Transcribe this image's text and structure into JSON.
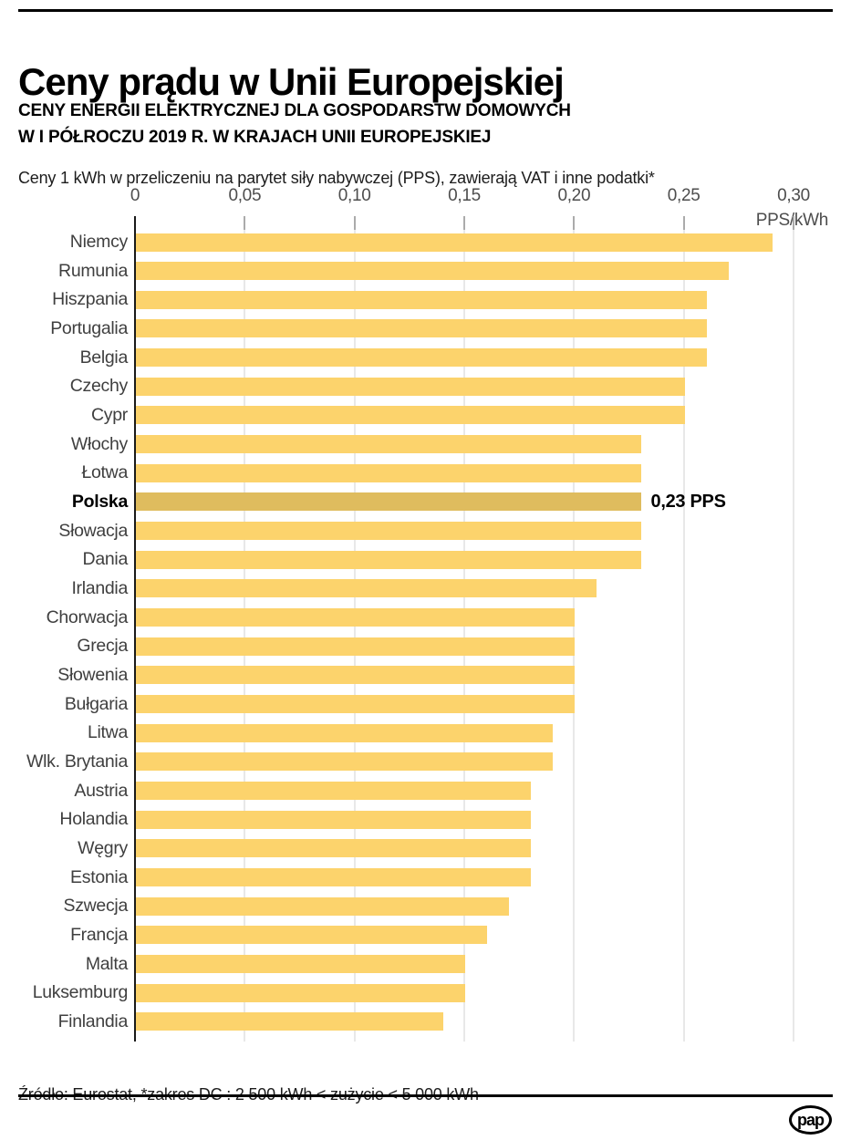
{
  "header": {
    "title": "Ceny prądu w Unii Europejskiej",
    "subtitle_line1": "CENY ENERGII ELEKTRYCZNEJ DLA GOSPODARSTW DOMOWYCH",
    "subtitle_line2": "W I PÓŁROCZU 2019 R. W KRAJACH UNII EUROPEJSKIEJ",
    "description": "Ceny 1 kWh w przeliczeniu na parytet siły nabywczej (PPS), zawierają VAT i inne podatki*"
  },
  "chart_data": {
    "type": "bar",
    "orientation": "horizontal",
    "title": "Ceny energii elektrycznej dla gospodarstw domowych w I półroczu 2019 r. w krajach Unii Europejskiej",
    "unit_label": "PPS/kWh",
    "xlim": [
      0,
      0.3
    ],
    "grid": true,
    "x_ticks": {
      "values": [
        0,
        0.05,
        0.1,
        0.15,
        0.2,
        0.25,
        0.3
      ],
      "labels": [
        "0",
        "0,05",
        "0,10",
        "0,15",
        "0,20",
        "0,25",
        "0,30"
      ]
    },
    "categories": [
      "Niemcy",
      "Rumunia",
      "Hiszpania",
      "Portugalia",
      "Belgia",
      "Czechy",
      "Cypr",
      "Włochy",
      "Łotwa",
      "Polska",
      "Słowacja",
      "Dania",
      "Irlandia",
      "Chorwacja",
      "Grecja",
      "Słowenia",
      "Bułgaria",
      "Litwa",
      "Wlk. Brytania",
      "Austria",
      "Holandia",
      "Węgry",
      "Estonia",
      "Szwecja",
      "Francja",
      "Malta",
      "Luksemburg",
      "Finlandia"
    ],
    "values": [
      0.29,
      0.27,
      0.26,
      0.26,
      0.26,
      0.25,
      0.25,
      0.23,
      0.23,
      0.23,
      0.23,
      0.23,
      0.21,
      0.2,
      0.2,
      0.2,
      0.2,
      0.19,
      0.19,
      0.18,
      0.18,
      0.18,
      0.18,
      0.17,
      0.16,
      0.15,
      0.15,
      0.14
    ],
    "highlight": {
      "category": "Polska",
      "annotation": "0,23 PPS"
    },
    "colors": {
      "bar": "#fcd36c",
      "highlight_bar": "#dfbc5e",
      "gridline": "#e8e8e8",
      "axis": "#1a1a1a"
    }
  },
  "footer": {
    "source": "Źródło: Eurostat, *zakres DC : 2 500 kWh < zużycie < 5 000 kWh",
    "logo_text": "pap"
  }
}
